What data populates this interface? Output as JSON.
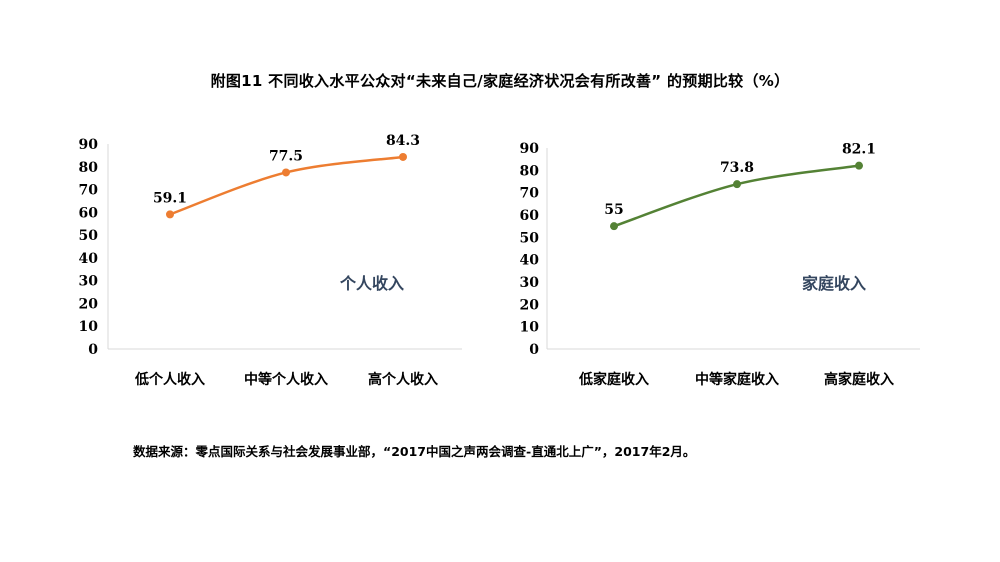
{
  "title": "附图11  不同收入水平公众对“未来自己/家庭经济状况会有所改善”  的预期比较（%）",
  "source": "数据来源：零点国际关系与社会发展事业部，“2017中国之声两会调查-直通北上广”，2017年2月。",
  "chart_data": [
    {
      "type": "line",
      "categories": [
        "低个人收入",
        "中等个人收入",
        "高个人收入"
      ],
      "series": [
        {
          "name": "个人收入",
          "values": [
            59.1,
            77.5,
            84.3
          ]
        }
      ],
      "value_labels": [
        "59.1",
        "77.5",
        "84.3"
      ],
      "ylim": [
        0,
        90
      ],
      "yticks": [
        "0",
        "10",
        "20",
        "30",
        "40",
        "50",
        "60",
        "70",
        "80",
        "90"
      ],
      "color": "#ed7d31",
      "grid": false
    },
    {
      "type": "line",
      "categories": [
        "低家庭收入",
        "中等家庭收入",
        "高家庭收入"
      ],
      "series": [
        {
          "name": "家庭收入",
          "values": [
            55,
            73.8,
            82.1
          ]
        }
      ],
      "value_labels": [
        "55",
        "73.8",
        "82.1"
      ],
      "ylim": [
        0,
        90
      ],
      "yticks": [
        "0",
        "10",
        "20",
        "30",
        "40",
        "50",
        "60",
        "70",
        "80",
        "90"
      ],
      "color": "#548235",
      "grid": false
    }
  ]
}
